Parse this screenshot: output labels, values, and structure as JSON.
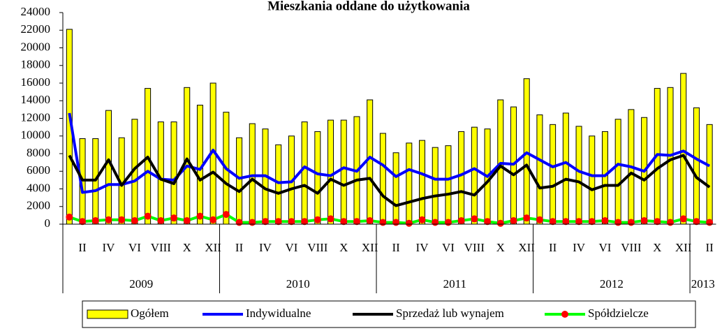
{
  "chart_data": {
    "type": "bar_line",
    "title": "Mieszkania oddane do użytkowania",
    "categories": [
      null,
      "II",
      null,
      "IV",
      null,
      "VI",
      null,
      "VIII",
      null,
      "X",
      null,
      "XII",
      null,
      "II",
      null,
      "IV",
      null,
      "VI",
      null,
      "VIII",
      null,
      "X",
      null,
      "XII",
      null,
      "II",
      null,
      "IV",
      null,
      "VI",
      null,
      "VIII",
      null,
      "X",
      null,
      "XII",
      null,
      "II",
      null,
      "IV",
      null,
      "VI",
      null,
      "VIII",
      null,
      "X",
      null,
      "XII",
      null,
      "II"
    ],
    "x_groups": [
      "2009",
      "2010",
      "2011",
      "2012",
      "2013"
    ],
    "ylim": [
      0,
      24000
    ],
    "yticks": [
      0,
      2000,
      4000,
      6000,
      8000,
      10000,
      12000,
      14000,
      16000,
      18000,
      20000,
      22000,
      24000
    ],
    "legend": "bottom",
    "series": [
      {
        "name": "Ogółem",
        "kind": "bar",
        "color": "#ffff00",
        "values": [
          22100,
          9700,
          9700,
          12900,
          9800,
          11900,
          15400,
          11600,
          11600,
          15500,
          13500,
          16000,
          12700,
          9800,
          11400,
          10800,
          9000,
          10000,
          11600,
          10500,
          11800,
          11800,
          12200,
          14100,
          10300,
          8100,
          9200,
          9500,
          8700,
          8900,
          10500,
          11000,
          10800,
          14100,
          13300,
          16500,
          12400,
          11300,
          12600,
          11100,
          10000,
          10500,
          11900,
          13000,
          12100,
          15400,
          15500,
          17100,
          13200,
          11300
        ]
      },
      {
        "name": "Indywidualne",
        "kind": "line",
        "color": "#0000ff",
        "values": [
          12600,
          3600,
          3800,
          4500,
          4500,
          4900,
          6000,
          5100,
          5000,
          6600,
          6200,
          8400,
          6300,
          5200,
          5500,
          5500,
          4700,
          4800,
          6500,
          5700,
          5500,
          6400,
          6000,
          7600,
          6700,
          5400,
          6200,
          5700,
          5100,
          5100,
          5600,
          6300,
          5400,
          6900,
          6800,
          8100,
          7300,
          6500,
          7000,
          6000,
          5500,
          5500,
          6800,
          6500,
          6000,
          7900,
          7800,
          8300,
          7400,
          6600
        ]
      },
      {
        "name": "Sprzedaż lub wynajem",
        "kind": "line",
        "color": "#000000",
        "values": [
          7800,
          5000,
          5000,
          7300,
          4400,
          6300,
          7600,
          5100,
          4600,
          7400,
          5000,
          5900,
          4600,
          3700,
          5100,
          4000,
          3500,
          4000,
          4400,
          3500,
          5100,
          4400,
          5000,
          5200,
          3200,
          2100,
          2500,
          2900,
          3200,
          3400,
          3700,
          3300,
          4800,
          6600,
          5600,
          6700,
          4100,
          4300,
          5100,
          4800,
          3900,
          4400,
          4400,
          5800,
          5000,
          6300,
          7300,
          7800,
          5300,
          4200
        ]
      },
      {
        "name": "Spółdzielcze",
        "kind": "line_marker",
        "color": "#00ff00",
        "marker_color": "#ff0000",
        "values": [
          800,
          300,
          400,
          500,
          500,
          400,
          900,
          400,
          700,
          400,
          900,
          500,
          1100,
          200,
          200,
          300,
          300,
          300,
          300,
          500,
          600,
          300,
          300,
          400,
          200,
          200,
          100,
          500,
          200,
          200,
          400,
          600,
          300,
          100,
          400,
          700,
          500,
          300,
          300,
          300,
          300,
          400,
          200,
          200,
          400,
          300,
          200,
          600,
          300,
          200
        ]
      }
    ]
  }
}
